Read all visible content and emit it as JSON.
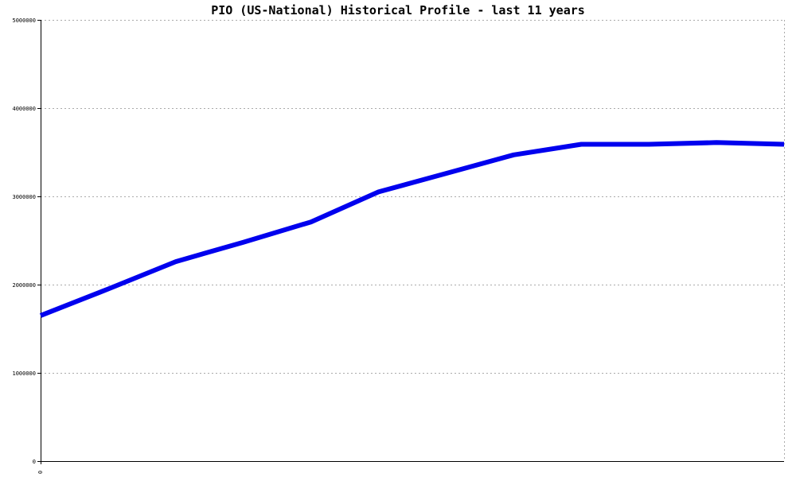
{
  "chart_data": {
    "type": "line",
    "title": "PIO (US-National) Historical Profile - last 11 years",
    "xlabel": "",
    "ylabel": "",
    "ylim": [
      0,
      5000000
    ],
    "yticks": [
      0,
      1000000,
      2000000,
      3000000,
      4000000,
      5000000
    ],
    "ytick_labels": [
      "0",
      "1000000",
      "2000000",
      "3000000",
      "4000000",
      "5000000"
    ],
    "xtick_labels": [
      "0"
    ],
    "grid": true,
    "line_color": "#0000ee",
    "grid_color": "#aaaaaa",
    "series": [
      {
        "x": [
          0,
          1,
          2,
          3,
          4,
          5,
          6,
          7,
          8,
          9,
          10,
          11
        ],
        "values": [
          1650000,
          1950000,
          2260000,
          2480000,
          2710000,
          3050000,
          3260000,
          3470000,
          3590000,
          3590000,
          3610000,
          3590000
        ]
      }
    ]
  }
}
